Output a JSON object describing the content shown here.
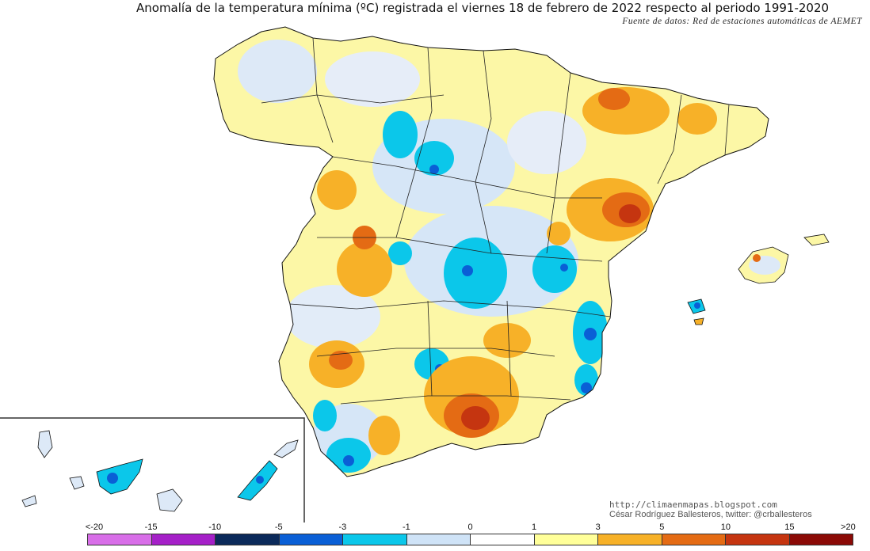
{
  "title": "Anomalía de la temperatura mínima (ºC) registrada el viernes 18 de febrero de 2022 respecto al periodo 1991-2020",
  "source": "Fuente de datos: Red de estaciones automáticas de AEMET",
  "credits": {
    "site": "http://climaenmapas.blogspot.com",
    "author": "César Rodríguez Ballesteros, twitter: @crballesteros"
  },
  "legend": {
    "labels": [
      "<-20",
      "-15",
      "-10",
      "-5",
      "-3",
      "-1",
      "0",
      "1",
      "3",
      "5",
      "10",
      "15",
      ">20"
    ],
    "colors": [
      "#d86ee8",
      "#a520c8",
      "#0b2a5a",
      "#0a5fd6",
      "#0bc7ea",
      "#cfe3f7",
      "#ffffff",
      "#ffff99",
      "#f7b128",
      "#e46b14",
      "#c53510",
      "#8b0a06",
      "#6a4300"
    ]
  },
  "palette": {
    "land_base": "#fcf7a6",
    "light_blue": "#cfe3f7",
    "cyan": "#0bc7ea",
    "blue": "#0a5fd6",
    "orange": "#f7b128",
    "dark_orange": "#e46b14",
    "red": "#c53510",
    "white": "#f4f6fb"
  }
}
